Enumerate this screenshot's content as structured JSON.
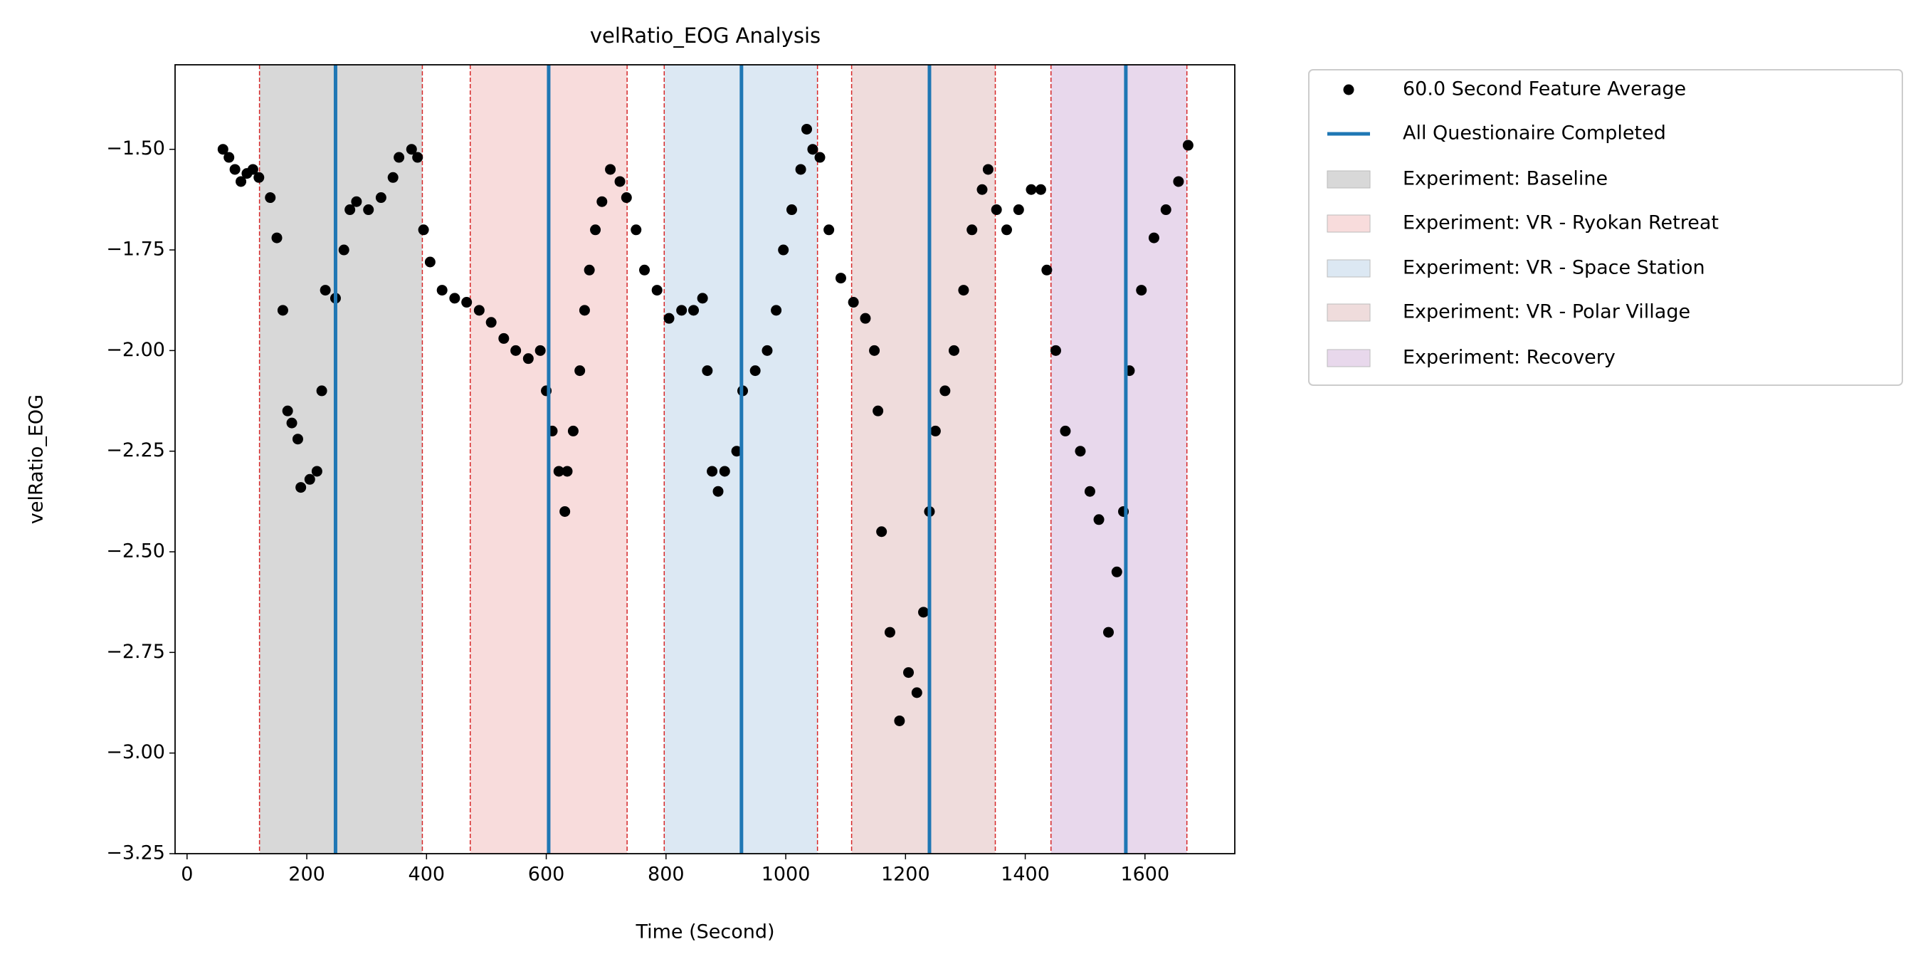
{
  "chart_data": {
    "type": "scatter",
    "title": "velRatio_EOG Analysis",
    "xlabel": "Time (Second)",
    "ylabel": "velRatio_EOG",
    "x": [
      60,
      70,
      80,
      90,
      100,
      110,
      120,
      139,
      150,
      160,
      168,
      175,
      185,
      190,
      205,
      217,
      225,
      231,
      248,
      262,
      272,
      283,
      303,
      324,
      344,
      354,
      375,
      385,
      395,
      406,
      426,
      447,
      467,
      488,
      508,
      529,
      549,
      570,
      590,
      600,
      610,
      621,
      631,
      635,
      645,
      656,
      664,
      672,
      682,
      693,
      707,
      723,
      734,
      750,
      764,
      785,
      805,
      826,
      846,
      861,
      869,
      877,
      887,
      898,
      918,
      928,
      949,
      969,
      984,
      996,
      1010,
      1025,
      1035,
      1045,
      1057,
      1072,
      1092,
      1113,
      1133,
      1148,
      1154,
      1160,
      1174,
      1190,
      1205,
      1219,
      1230,
      1240,
      1250,
      1266,
      1281,
      1297,
      1311,
      1328,
      1338,
      1352,
      1369,
      1389,
      1410,
      1426,
      1436,
      1451,
      1467,
      1492,
      1508,
      1523,
      1539,
      1553,
      1564,
      1574,
      1594,
      1615,
      1635,
      1656,
      1672
    ],
    "series": [
      {
        "name": "60.0 Second Feature Average",
        "color": "#000000",
        "values": [
          -1.5,
          -1.52,
          -1.55,
          -1.58,
          -1.56,
          -1.55,
          -1.57,
          -1.62,
          -1.72,
          -1.9,
          -2.15,
          -2.18,
          -2.22,
          -2.34,
          -2.32,
          -2.3,
          -2.1,
          -1.85,
          -1.87,
          -1.75,
          -1.65,
          -1.63,
          -1.65,
          -1.62,
          -1.57,
          -1.52,
          -1.5,
          -1.52,
          -1.7,
          -1.78,
          -1.85,
          -1.87,
          -1.88,
          -1.9,
          -1.93,
          -1.97,
          -2.0,
          -2.02,
          -2.0,
          -2.1,
          -2.2,
          -2.3,
          -2.4,
          -2.3,
          -2.2,
          -2.05,
          -1.9,
          -1.8,
          -1.7,
          -1.63,
          -1.55,
          -1.58,
          -1.62,
          -1.7,
          -1.8,
          -1.85,
          -1.92,
          -1.9,
          -1.9,
          -1.87,
          -2.05,
          -2.3,
          -2.35,
          -2.3,
          -2.25,
          -2.1,
          -2.05,
          -2.0,
          -1.9,
          -1.75,
          -1.65,
          -1.55,
          -1.45,
          -1.5,
          -1.52,
          -1.7,
          -1.82,
          -1.88,
          -1.92,
          -2.0,
          -2.15,
          -2.45,
          -2.7,
          -2.92,
          -2.8,
          -2.85,
          -2.65,
          -2.4,
          -2.2,
          -2.1,
          -2.0,
          -1.85,
          -1.7,
          -1.6,
          -1.55,
          -1.65,
          -1.7,
          -1.65,
          -1.6,
          -1.6,
          -1.8,
          -2.0,
          -2.2,
          -2.25,
          -2.35,
          -2.42,
          -2.7,
          -2.55,
          -2.4,
          -2.05,
          -1.85,
          -1.72,
          -1.65,
          -1.58,
          -1.49
        ]
      }
    ],
    "vlines": {
      "name": "All Questionaire Completed",
      "color": "#1f77b4",
      "x": [
        248,
        604,
        926,
        1240,
        1568
      ]
    },
    "spans": [
      {
        "name": "Experiment: Baseline",
        "color": "#d8d8d8",
        "x": [
          121,
          393
        ]
      },
      {
        "name": "Experiment: VR - Ryokan Retreat",
        "color": "#f8dcdc",
        "x": [
          473,
          735
        ]
      },
      {
        "name": "Experiment: VR - Space Station",
        "color": "#dce8f3",
        "x": [
          797,
          1053
        ]
      },
      {
        "name": "Experiment: VR - Polar Village",
        "color": "#efdcdc",
        "x": [
          1110,
          1350
        ]
      },
      {
        "name": "Experiment: Recovery",
        "color": "#e8d8ec",
        "x": [
          1443,
          1670
        ]
      }
    ],
    "span_edge_color": "#d62728",
    "xlim": [
      -20,
      1750
    ],
    "ylim": [
      -3.25,
      -1.29
    ],
    "xticks": [
      0,
      200,
      400,
      600,
      800,
      1000,
      1200,
      1400,
      1600
    ],
    "yticks": [
      {
        "value": -3.25,
        "label": "−3.25"
      },
      {
        "value": -3.0,
        "label": "−3.00"
      },
      {
        "value": -2.75,
        "label": "−2.75"
      },
      {
        "value": -2.5,
        "label": "−2.50"
      },
      {
        "value": -2.25,
        "label": "−2.25"
      },
      {
        "value": -2.0,
        "label": "−2.00"
      },
      {
        "value": -1.75,
        "label": "−1.75"
      },
      {
        "value": -1.5,
        "label": "−1.50"
      }
    ]
  }
}
